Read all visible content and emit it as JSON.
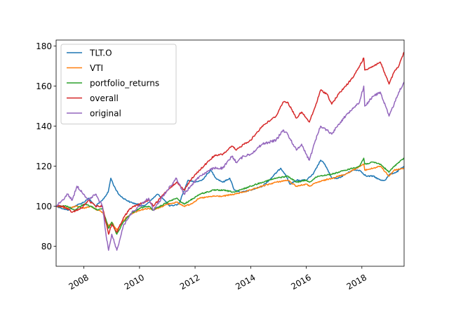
{
  "chart_data": {
    "type": "line",
    "title": "",
    "xlabel": "",
    "ylabel": "",
    "xlim": [
      "2007-01-01",
      "2019-07-10"
    ],
    "ylim": [
      70,
      183
    ],
    "x_ticks": [
      {
        "x": "2008-01-01",
        "label": "2008"
      },
      {
        "x": "2010-01-01",
        "label": "2010"
      },
      {
        "x": "2012-01-01",
        "label": "2012"
      },
      {
        "x": "2014-01-01",
        "label": "2014"
      },
      {
        "x": "2016-01-01",
        "label": "2016"
      },
      {
        "x": "2018-01-01",
        "label": "2018"
      }
    ],
    "y_ticks": [
      80,
      100,
      120,
      140,
      160,
      180
    ],
    "grid": false,
    "legend_position": "upper-left",
    "series": [
      {
        "name": "TLT.O",
        "color": "#1f77b4",
        "points": [
          [
            "2007-01-01",
            100
          ],
          [
            "2007-06-01",
            98
          ],
          [
            "2007-09-01",
            100
          ],
          [
            "2008-01-01",
            102
          ],
          [
            "2008-03-01",
            104
          ],
          [
            "2008-06-01",
            100
          ],
          [
            "2008-09-01",
            103
          ],
          [
            "2008-11-15",
            107
          ],
          [
            "2008-12-20",
            114
          ],
          [
            "2009-02-01",
            110
          ],
          [
            "2009-04-01",
            106
          ],
          [
            "2009-06-01",
            104
          ],
          [
            "2009-09-01",
            102
          ],
          [
            "2009-12-01",
            101
          ],
          [
            "2010-03-01",
            100
          ],
          [
            "2010-06-01",
            103
          ],
          [
            "2010-08-25",
            106
          ],
          [
            "2010-11-01",
            104
          ],
          [
            "2011-02-01",
            100
          ],
          [
            "2011-06-01",
            101
          ],
          [
            "2011-08-01",
            107
          ],
          [
            "2011-10-01",
            113
          ],
          [
            "2012-01-01",
            112
          ],
          [
            "2012-04-01",
            113
          ],
          [
            "2012-07-25",
            118
          ],
          [
            "2012-10-01",
            114
          ],
          [
            "2013-01-01",
            112
          ],
          [
            "2013-04-01",
            114
          ],
          [
            "2013-06-01",
            108
          ],
          [
            "2013-09-01",
            107
          ],
          [
            "2014-01-01",
            108
          ],
          [
            "2014-06-01",
            110
          ],
          [
            "2014-09-01",
            113
          ],
          [
            "2015-01-30",
            119
          ],
          [
            "2015-04-01",
            116
          ],
          [
            "2015-06-01",
            111
          ],
          [
            "2015-09-01",
            113
          ],
          [
            "2016-01-01",
            113
          ],
          [
            "2016-04-01",
            116
          ],
          [
            "2016-07-08",
            123
          ],
          [
            "2016-09-01",
            121
          ],
          [
            "2016-12-01",
            114
          ],
          [
            "2017-03-01",
            114
          ],
          [
            "2017-09-01",
            118
          ],
          [
            "2017-12-01",
            118
          ],
          [
            "2018-03-01",
            115
          ],
          [
            "2018-06-01",
            115
          ],
          [
            "2018-09-01",
            113
          ],
          [
            "2018-11-01",
            113
          ],
          [
            "2019-01-01",
            116
          ],
          [
            "2019-04-01",
            117
          ],
          [
            "2019-07-10",
            120
          ]
        ]
      },
      {
        "name": "VTI",
        "color": "#ff7f0e",
        "points": [
          [
            "2007-01-01",
            100
          ],
          [
            "2007-06-01",
            99
          ],
          [
            "2007-10-01",
            100
          ],
          [
            "2008-01-01",
            99
          ],
          [
            "2008-04-01",
            100
          ],
          [
            "2008-07-01",
            98
          ],
          [
            "2008-09-01",
            97
          ],
          [
            "2008-11-20",
            90
          ],
          [
            "2009-01-01",
            92
          ],
          [
            "2009-03-09",
            88
          ],
          [
            "2009-06-01",
            93
          ],
          [
            "2009-09-01",
            96
          ],
          [
            "2010-01-01",
            98
          ],
          [
            "2010-05-01",
            99
          ],
          [
            "2010-07-01",
            98
          ],
          [
            "2011-01-01",
            101
          ],
          [
            "2011-05-01",
            102
          ],
          [
            "2011-08-10",
            100
          ],
          [
            "2011-11-01",
            101
          ],
          [
            "2012-03-01",
            104
          ],
          [
            "2012-09-01",
            105
          ],
          [
            "2013-01-01",
            105
          ],
          [
            "2013-06-01",
            106
          ],
          [
            "2014-01-01",
            108
          ],
          [
            "2014-06-01",
            110
          ],
          [
            "2014-12-01",
            112
          ],
          [
            "2015-05-01",
            113
          ],
          [
            "2015-08-25",
            110
          ],
          [
            "2016-01-01",
            111
          ],
          [
            "2016-02-11",
            110
          ],
          [
            "2016-06-01",
            112
          ],
          [
            "2016-12-01",
            114
          ],
          [
            "2017-06-01",
            116
          ],
          [
            "2018-01-26",
            121
          ],
          [
            "2018-02-08",
            118
          ],
          [
            "2018-06-01",
            119
          ],
          [
            "2018-09-01",
            120
          ],
          [
            "2018-12-24",
            115
          ],
          [
            "2019-03-01",
            118
          ],
          [
            "2019-07-10",
            119
          ]
        ]
      },
      {
        "name": "portfolio_returns",
        "color": "#2ca02c",
        "points": [
          [
            "2007-01-01",
            100
          ],
          [
            "2007-06-01",
            100
          ],
          [
            "2007-09-01",
            98
          ],
          [
            "2008-01-01",
            101
          ],
          [
            "2008-04-01",
            100
          ],
          [
            "2008-07-01",
            98
          ],
          [
            "2008-09-01",
            99
          ],
          [
            "2008-11-20",
            89
          ],
          [
            "2009-01-01",
            92
          ],
          [
            "2009-03-09",
            86
          ],
          [
            "2009-06-01",
            92
          ],
          [
            "2009-09-01",
            96
          ],
          [
            "2010-01-01",
            99
          ],
          [
            "2010-05-01",
            100
          ],
          [
            "2010-07-01",
            98
          ],
          [
            "2011-01-01",
            102
          ],
          [
            "2011-05-01",
            104
          ],
          [
            "2011-08-10",
            101
          ],
          [
            "2011-11-01",
            103
          ],
          [
            "2012-03-01",
            106
          ],
          [
            "2012-09-01",
            108
          ],
          [
            "2013-01-01",
            108
          ],
          [
            "2013-06-01",
            107
          ],
          [
            "2014-01-01",
            110
          ],
          [
            "2014-06-01",
            112
          ],
          [
            "2014-12-01",
            114
          ],
          [
            "2015-05-01",
            115
          ],
          [
            "2015-08-25",
            112
          ],
          [
            "2016-01-01",
            113
          ],
          [
            "2016-02-11",
            112
          ],
          [
            "2016-06-01",
            115
          ],
          [
            "2016-12-01",
            116
          ],
          [
            "2017-06-01",
            118
          ],
          [
            "2017-12-01",
            120
          ],
          [
            "2018-01-26",
            124
          ],
          [
            "2018-02-08",
            121
          ],
          [
            "2018-06-01",
            122
          ],
          [
            "2018-09-01",
            121
          ],
          [
            "2018-12-24",
            117
          ],
          [
            "2019-03-01",
            120
          ],
          [
            "2019-07-10",
            124
          ]
        ]
      },
      {
        "name": "overall",
        "color": "#d62728",
        "points": [
          [
            "2007-01-01",
            100
          ],
          [
            "2007-04-01",
            100
          ],
          [
            "2007-08-01",
            97
          ],
          [
            "2007-12-01",
            99
          ],
          [
            "2008-03-01",
            103
          ],
          [
            "2008-06-01",
            100
          ],
          [
            "2008-09-01",
            100
          ],
          [
            "2008-11-20",
            86
          ],
          [
            "2009-01-01",
            91
          ],
          [
            "2009-03-09",
            87
          ],
          [
            "2009-06-01",
            94
          ],
          [
            "2009-09-01",
            99
          ],
          [
            "2010-01-01",
            101
          ],
          [
            "2010-05-01",
            103
          ],
          [
            "2010-07-01",
            100
          ],
          [
            "2011-01-01",
            108
          ],
          [
            "2011-05-01",
            112
          ],
          [
            "2011-08-10",
            108
          ],
          [
            "2011-11-01",
            113
          ],
          [
            "2012-03-01",
            118
          ],
          [
            "2012-09-01",
            125
          ],
          [
            "2013-01-01",
            126
          ],
          [
            "2013-05-01",
            130
          ],
          [
            "2013-06-25",
            128
          ],
          [
            "2013-10-01",
            131
          ],
          [
            "2014-01-01",
            133
          ],
          [
            "2014-06-01",
            140
          ],
          [
            "2014-12-01",
            145
          ],
          [
            "2015-03-01",
            152
          ],
          [
            "2015-05-01",
            152
          ],
          [
            "2015-08-25",
            144
          ],
          [
            "2015-11-01",
            147
          ],
          [
            "2016-01-01",
            144
          ],
          [
            "2016-02-11",
            142
          ],
          [
            "2016-05-01",
            150
          ],
          [
            "2016-07-08",
            158
          ],
          [
            "2016-10-01",
            156
          ],
          [
            "2016-12-01",
            151
          ],
          [
            "2017-03-01",
            156
          ],
          [
            "2017-06-01",
            160
          ],
          [
            "2017-09-01",
            164
          ],
          [
            "2017-12-01",
            170
          ],
          [
            "2018-01-26",
            174
          ],
          [
            "2018-02-08",
            168
          ],
          [
            "2018-06-01",
            170
          ],
          [
            "2018-09-01",
            172
          ],
          [
            "2018-12-24",
            161
          ],
          [
            "2019-03-01",
            167
          ],
          [
            "2019-05-01",
            170
          ],
          [
            "2019-07-10",
            177
          ]
        ]
      },
      {
        "name": "original",
        "color": "#9467bd",
        "points": [
          [
            "2007-01-01",
            100
          ],
          [
            "2007-03-01",
            102
          ],
          [
            "2007-06-01",
            106
          ],
          [
            "2007-08-01",
            103
          ],
          [
            "2007-10-01",
            110
          ],
          [
            "2008-01-01",
            106
          ],
          [
            "2008-03-01",
            103
          ],
          [
            "2008-06-01",
            106
          ],
          [
            "2008-09-01",
            100
          ],
          [
            "2008-10-20",
            85
          ],
          [
            "2008-11-20",
            78
          ],
          [
            "2009-01-01",
            86
          ],
          [
            "2009-03-09",
            78
          ],
          [
            "2009-06-01",
            90
          ],
          [
            "2009-09-01",
            96
          ],
          [
            "2010-01-01",
            100
          ],
          [
            "2010-05-01",
            104
          ],
          [
            "2010-07-01",
            98
          ],
          [
            "2011-01-01",
            108
          ],
          [
            "2011-05-01",
            114
          ],
          [
            "2011-08-10",
            106
          ],
          [
            "2011-11-01",
            110
          ],
          [
            "2012-03-01",
            115
          ],
          [
            "2012-09-01",
            119
          ],
          [
            "2013-01-01",
            119
          ],
          [
            "2013-05-01",
            125
          ],
          [
            "2013-06-25",
            122
          ],
          [
            "2013-10-01",
            125
          ],
          [
            "2014-01-01",
            126
          ],
          [
            "2014-06-01",
            131
          ],
          [
            "2014-12-01",
            133
          ],
          [
            "2015-03-01",
            138
          ],
          [
            "2015-05-01",
            136
          ],
          [
            "2015-08-25",
            128
          ],
          [
            "2015-11-01",
            131
          ],
          [
            "2016-01-01",
            126
          ],
          [
            "2016-02-11",
            123
          ],
          [
            "2016-05-01",
            133
          ],
          [
            "2016-07-08",
            140
          ],
          [
            "2016-10-01",
            138
          ],
          [
            "2016-12-01",
            136
          ],
          [
            "2017-03-01",
            141
          ],
          [
            "2017-06-01",
            145
          ],
          [
            "2017-09-01",
            149
          ],
          [
            "2017-12-01",
            152
          ],
          [
            "2018-01-26",
            160
          ],
          [
            "2018-02-08",
            150
          ],
          [
            "2018-06-01",
            155
          ],
          [
            "2018-09-01",
            157
          ],
          [
            "2018-12-24",
            145
          ],
          [
            "2019-03-01",
            151
          ],
          [
            "2019-05-01",
            157
          ],
          [
            "2019-07-10",
            162
          ]
        ]
      }
    ]
  }
}
